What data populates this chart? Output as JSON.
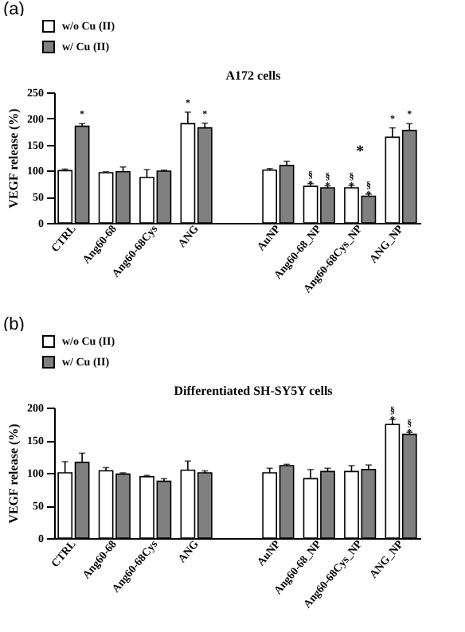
{
  "chart_data": [
    {
      "type": "bar",
      "title": "A172 cells",
      "ylabel": "VEGF release (%)",
      "annotations": [
        "(a)",
        {
          "text": "*",
          "x": "Ang60-68Cys_NP",
          "y": 67
        }
      ],
      "categories": [
        "CTRL",
        "Ang60-68",
        "Ang60-68Cys",
        "ANG",
        null,
        "AuNP",
        "Ang60-68_NP",
        "Ang60-68Cys_NP",
        "ANG_NP"
      ],
      "ylim": [
        0,
        250
      ],
      "yticks": [
        0,
        50,
        100,
        150,
        200,
        250
      ],
      "legend": "top left",
      "series": [
        {
          "name": "w/o Cu (II)",
          "color": "#ffffff",
          "values": [
            100,
            96,
            87,
            190,
            null,
            101,
            70,
            67,
            164
          ],
          "errors": [
            [
              100,
              103
            ],
            [
              96,
              98
            ],
            [
              87,
              102
            ],
            [
              190,
              212
            ],
            null,
            [
              101,
              104
            ],
            [
              70,
              75
            ],
            [
              67,
              72
            ],
            [
              164,
              182
            ]
          ],
          "value_labels": [
            null,
            null,
            null,
            "*",
            null,
            null,
            "§\n*",
            "§\n*",
            "*"
          ]
        },
        {
          "name": "w/ Cu (II)",
          "color": "#808080",
          "values": [
            185,
            98,
            99,
            182,
            null,
            110,
            67,
            51,
            177
          ],
          "errors": [
            [
              185,
              190
            ],
            [
              98,
              107
            ],
            [
              99,
              101
            ],
            [
              182,
              191
            ],
            null,
            [
              110,
              118
            ],
            [
              67,
              71
            ],
            [
              51,
              55
            ],
            [
              177,
              190
            ]
          ],
          "value_labels": [
            "*",
            null,
            null,
            "*",
            null,
            null,
            "§\n*",
            "§\n*",
            "*"
          ]
        }
      ]
    },
    {
      "type": "bar",
      "title": "Differentiated SH-SY5Y cells",
      "ylabel": "VEGF release (%)",
      "annotations": [
        "(b)"
      ],
      "categories": [
        "CTRL",
        "Ang60-68",
        "Ang60-68Cys",
        "ANG",
        null,
        "AuNP",
        "Ang60-68_NP",
        "Ang60-68Cys_NP",
        "ANG_NP"
      ],
      "ylim": [
        0,
        200
      ],
      "yticks": [
        0,
        50,
        100,
        150,
        200
      ],
      "legend": "top left",
      "series": [
        {
          "name": "w/o Cu (II)",
          "color": "#ffffff",
          "values": [
            100,
            103,
            94,
            104,
            null,
            100,
            91,
            102,
            174
          ],
          "errors": [
            [
              100,
              117
            ],
            [
              103,
              108
            ],
            [
              94,
              96
            ],
            [
              104,
              118
            ],
            null,
            [
              100,
              107
            ],
            [
              91,
              105
            ],
            [
              102,
              111
            ],
            [
              174,
              182
            ]
          ],
          "value_labels": [
            null,
            null,
            null,
            null,
            null,
            null,
            null,
            null,
            "§\n*"
          ]
        },
        {
          "name": "w/ Cu (II)",
          "color": "#808080",
          "values": [
            116,
            98,
            87,
            100,
            null,
            111,
            102,
            105,
            159
          ],
          "errors": [
            [
              116,
              130
            ],
            [
              98,
              100
            ],
            [
              87,
              91
            ],
            [
              100,
              103
            ],
            null,
            [
              111,
              113
            ],
            [
              102,
              107
            ],
            [
              105,
              112
            ],
            [
              159,
              162
            ]
          ],
          "value_labels": [
            null,
            null,
            null,
            null,
            null,
            null,
            null,
            null,
            "§\n*"
          ]
        }
      ]
    }
  ]
}
